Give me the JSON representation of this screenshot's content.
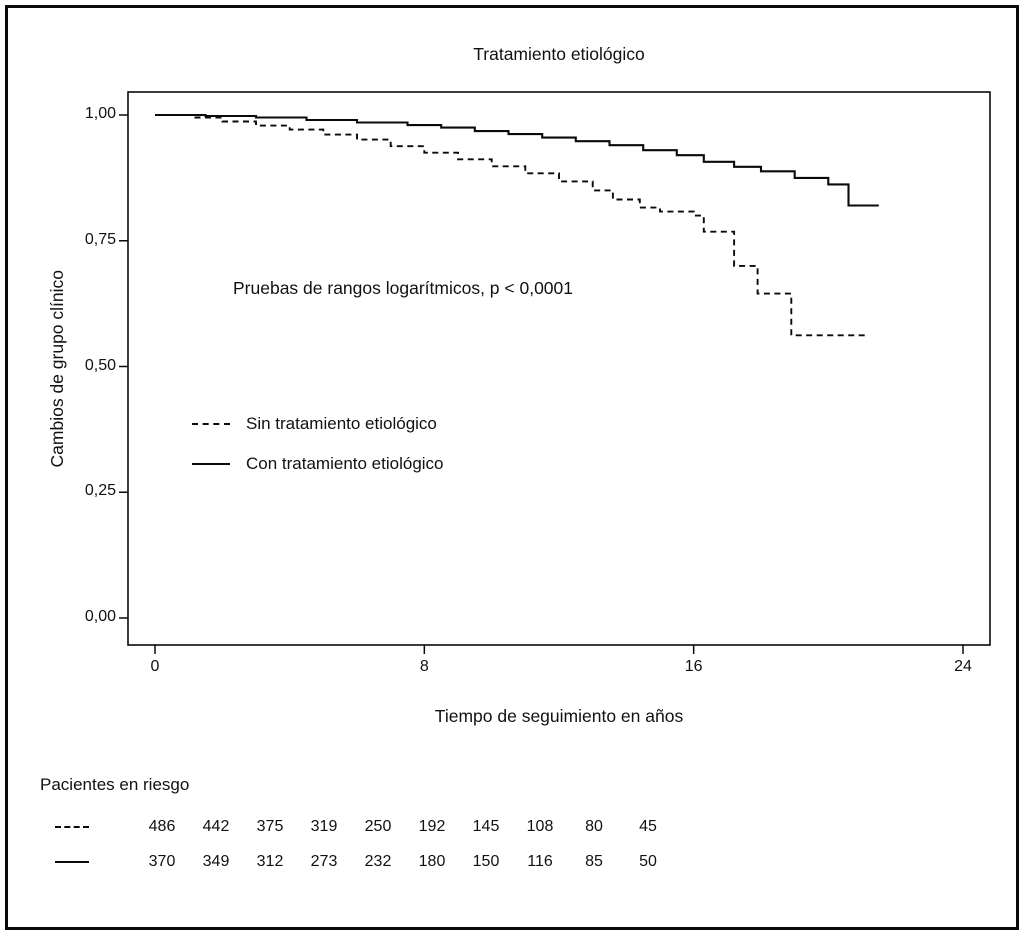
{
  "figure": {
    "title": "Tratamiento etiológico",
    "x_axis_label": "Tiempo de seguimiento en años",
    "y_axis_label": "Cambios de grupo clínico",
    "annotation": "Pruebas de rangos logarítmicos, p < 0,0001"
  },
  "legend": {
    "items": [
      {
        "label": "Sin tratamiento etiológico",
        "style": "dashed"
      },
      {
        "label": "Con tratamiento etiológico",
        "style": "solid"
      }
    ]
  },
  "risk_table": {
    "title": "Pacientes en riesgo",
    "rows": [
      {
        "style": "dashed",
        "name": "Sin tratamiento etiológico",
        "values": [
          "486",
          "442",
          "375",
          "319",
          "250",
          "192",
          "145",
          "108",
          "80",
          "45"
        ]
      },
      {
        "style": "solid",
        "name": "Con tratamiento etiológico",
        "values": [
          "370",
          "349",
          "312",
          "273",
          "232",
          "180",
          "150",
          "116",
          "85",
          "50"
        ]
      }
    ]
  },
  "chart_data": {
    "type": "line",
    "subtype": "kaplan-meier-step",
    "title": "Tratamiento etiológico",
    "xlabel": "Tiempo de seguimiento en años",
    "ylabel": "Cambios de grupo clínico",
    "xlim": [
      0,
      24
    ],
    "ylim": [
      0,
      1
    ],
    "grid": false,
    "legend_position": "inside-left-middle",
    "annotation": "Pruebas de rangos logarítmicos, p < 0,0001",
    "line_color": "#0a0a0a",
    "xticks": [
      {
        "value": 0,
        "label": "0"
      },
      {
        "value": 8,
        "label": "8"
      },
      {
        "value": 16,
        "label": "16"
      },
      {
        "value": 24,
        "label": "24"
      }
    ],
    "yticks": [
      {
        "value": 0.0,
        "label": "0,00"
      },
      {
        "value": 0.25,
        "label": "0,25"
      },
      {
        "value": 0.5,
        "label": "0,50"
      },
      {
        "value": 0.75,
        "label": "0,75"
      },
      {
        "value": 1.0,
        "label": "1,00"
      }
    ],
    "series": [
      {
        "name": "Sin tratamiento etiológico",
        "style": "dashed",
        "points": [
          [
            0,
            1.0
          ],
          [
            1.2,
            0.995
          ],
          [
            2,
            0.987
          ],
          [
            3,
            0.979
          ],
          [
            4,
            0.971
          ],
          [
            5,
            0.961
          ],
          [
            6,
            0.951
          ],
          [
            7,
            0.938
          ],
          [
            8,
            0.925
          ],
          [
            9,
            0.912
          ],
          [
            10,
            0.898
          ],
          [
            11,
            0.884
          ],
          [
            12,
            0.868
          ],
          [
            13,
            0.85
          ],
          [
            13.6,
            0.832
          ],
          [
            14.4,
            0.816
          ],
          [
            15,
            0.808
          ],
          [
            16,
            0.8
          ],
          [
            16.3,
            0.768
          ],
          [
            17.2,
            0.7
          ],
          [
            17.9,
            0.645
          ],
          [
            18.9,
            0.562
          ],
          [
            21.2,
            0.562
          ]
        ]
      },
      {
        "name": "Con tratamiento etiológico",
        "style": "solid",
        "points": [
          [
            0,
            1.0
          ],
          [
            1.5,
            0.998
          ],
          [
            3,
            0.995
          ],
          [
            4.5,
            0.99
          ],
          [
            6,
            0.985
          ],
          [
            7.5,
            0.98
          ],
          [
            8.5,
            0.975
          ],
          [
            9.5,
            0.968
          ],
          [
            10.5,
            0.962
          ],
          [
            11.5,
            0.955
          ],
          [
            12.5,
            0.948
          ],
          [
            13.5,
            0.94
          ],
          [
            14.5,
            0.93
          ],
          [
            15.5,
            0.92
          ],
          [
            16.3,
            0.907
          ],
          [
            17.2,
            0.897
          ],
          [
            18,
            0.888
          ],
          [
            19,
            0.875
          ],
          [
            20,
            0.862
          ],
          [
            20.6,
            0.82
          ],
          [
            21.5,
            0.82
          ]
        ]
      }
    ],
    "risk_counts": {
      "Sin tratamiento etiológico": [
        486,
        442,
        375,
        319,
        250,
        192,
        145,
        108,
        80,
        45
      ],
      "Con tratamiento etiológico": [
        370,
        349,
        312,
        273,
        232,
        180,
        150,
        116,
        85,
        50
      ]
    }
  }
}
